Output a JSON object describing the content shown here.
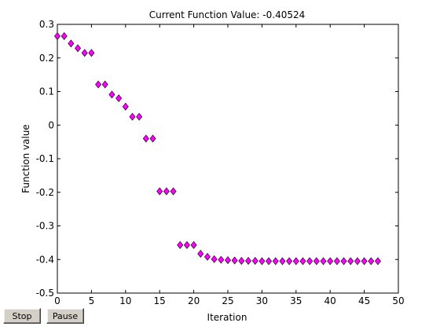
{
  "buttons": {
    "stop_label": "Stop",
    "pause_label": "Pause"
  },
  "chart_data": {
    "type": "scatter",
    "title": "Current Function Value: -0.40524",
    "xlabel": "Iteration",
    "ylabel": "Function value",
    "xlim": [
      0,
      50
    ],
    "ylim": [
      -0.5,
      0.3
    ],
    "xticks": [
      0,
      5,
      10,
      15,
      20,
      25,
      30,
      35,
      40,
      45,
      50
    ],
    "yticks": [
      0.3,
      0.2,
      0.1,
      0,
      -0.1,
      -0.2,
      -0.3,
      -0.4,
      -0.5
    ],
    "ytick_labels": [
      "0.3",
      "0.2",
      "0.1",
      "0",
      "-0.1",
      "-0.2",
      "-0.3",
      "-0.4",
      "-0.5"
    ],
    "grid": false,
    "marker": "diamond",
    "marker_color": "#ff00ff",
    "x": [
      0,
      1,
      2,
      3,
      4,
      5,
      6,
      7,
      8,
      9,
      10,
      11,
      12,
      13,
      14,
      15,
      16,
      17,
      18,
      19,
      20,
      21,
      22,
      23,
      24,
      25,
      26,
      27,
      28,
      29,
      30,
      31,
      32,
      33,
      34,
      35,
      36,
      37,
      38,
      39,
      40,
      41,
      42,
      43,
      44,
      45,
      46,
      47
    ],
    "y": [
      0.265,
      0.265,
      0.243,
      0.229,
      0.215,
      0.215,
      0.121,
      0.121,
      0.091,
      0.08,
      0.055,
      0.025,
      0.025,
      -0.04,
      -0.04,
      -0.197,
      -0.197,
      -0.197,
      -0.357,
      -0.357,
      -0.357,
      -0.383,
      -0.392,
      -0.399,
      -0.401,
      -0.402,
      -0.403,
      -0.404,
      -0.404,
      -0.404,
      -0.405,
      -0.405,
      -0.405,
      -0.405,
      -0.405,
      -0.405,
      -0.405,
      -0.405,
      -0.405,
      -0.405,
      -0.405,
      -0.405,
      -0.405,
      -0.405,
      -0.405,
      -0.405,
      -0.405,
      -0.405
    ]
  }
}
